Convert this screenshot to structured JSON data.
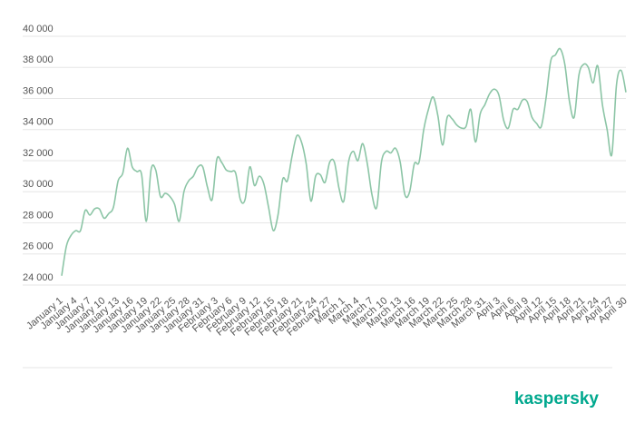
{
  "chart_data": {
    "type": "line",
    "categories": [
      "January 1",
      null,
      null,
      "January 4",
      null,
      null,
      "January 7",
      null,
      null,
      "January 10",
      null,
      null,
      "January 13",
      null,
      null,
      "January 16",
      null,
      null,
      "January 19",
      null,
      null,
      "January 22",
      null,
      null,
      "January 25",
      null,
      null,
      "January 28",
      null,
      null,
      "January 31",
      null,
      null,
      "February 3",
      null,
      null,
      "February 6",
      null,
      null,
      "February 9",
      null,
      null,
      "February 12",
      null,
      null,
      "February 15",
      null,
      null,
      "February 18",
      null,
      null,
      "February 21",
      null,
      null,
      "February 24",
      null,
      null,
      "February 27",
      null,
      null,
      "March 1",
      null,
      null,
      "March 4",
      null,
      null,
      "March 7",
      null,
      null,
      "March 10",
      null,
      null,
      "March 13",
      null,
      null,
      "March 16",
      null,
      null,
      "March 19",
      null,
      null,
      "March 22",
      null,
      null,
      "March 25",
      null,
      null,
      "March 28",
      null,
      null,
      "March 31",
      null,
      null,
      "April 3",
      null,
      null,
      "April 6",
      null,
      null,
      "April 9",
      null,
      null,
      "April 12",
      null,
      null,
      "April 15",
      null,
      null,
      "April 18",
      null,
      null,
      "April 21",
      null,
      null,
      "April 24",
      null,
      null,
      "April 27",
      null,
      null,
      "April 30"
    ],
    "series": [
      {
        "color": "#8cc5a6",
        "values": [
          24600,
          26500,
          27200,
          27500,
          27500,
          28800,
          28500,
          28900,
          28900,
          28300,
          28600,
          29000,
          30700,
          31200,
          32800,
          31600,
          31300,
          31100,
          28100,
          31400,
          31400,
          29700,
          29900,
          29700,
          29200,
          28100,
          30000,
          30700,
          31000,
          31600,
          31600,
          30300,
          29500,
          32100,
          31900,
          31400,
          31300,
          31200,
          29500,
          29500,
          31600,
          30400,
          31000,
          30500,
          29000,
          27500,
          28500,
          30800,
          30700,
          32300,
          33600,
          33200,
          31800,
          29400,
          31000,
          31100,
          30600,
          31900,
          31900,
          30200,
          29400,
          31900,
          32600,
          32000,
          33100,
          31800,
          29800,
          29000,
          31900,
          32600,
          32500,
          32800,
          31900,
          29800,
          30000,
          31800,
          31900,
          34000,
          35300,
          36100,
          34900,
          33000,
          34800,
          34700,
          34300,
          34100,
          34200,
          35300,
          33200,
          35000,
          35600,
          36300,
          36600,
          36200,
          34600,
          34100,
          35300,
          35300,
          35900,
          35800,
          34800,
          34400,
          34200,
          36000,
          38400,
          38800,
          39200,
          38200,
          35800,
          34800,
          37500,
          38200,
          38000,
          37000,
          38100,
          35600,
          34000,
          32400,
          36900,
          37800,
          36400
        ]
      }
    ],
    "ylim": [
      24000,
      40000
    ],
    "yticks": [
      {
        "value": 24000,
        "label": "24 000"
      },
      {
        "value": 26000,
        "label": "26 000"
      },
      {
        "value": 28000,
        "label": "28 000"
      },
      {
        "value": 30000,
        "label": "30 000"
      },
      {
        "value": 32000,
        "label": "32 000"
      },
      {
        "value": 34000,
        "label": "34 000"
      },
      {
        "value": 36000,
        "label": "36 000"
      },
      {
        "value": 38000,
        "label": "38 000"
      },
      {
        "value": 40000,
        "label": "40 000"
      }
    ],
    "grid": true
  },
  "brand": "kaspersky"
}
